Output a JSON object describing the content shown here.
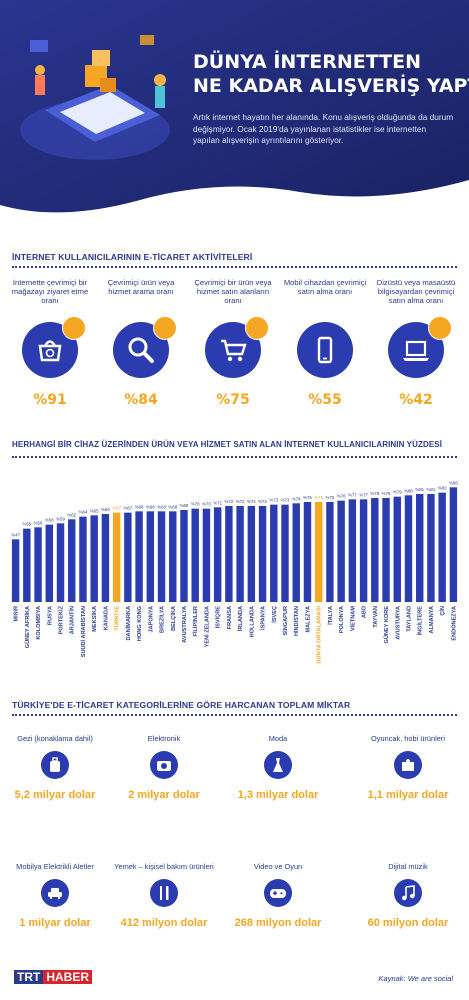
{
  "header": {
    "title_line1": "DÜNYA İNTERNETTEN",
    "title_line2": "NE KADAR ALIŞVERİŞ YAPTI?",
    "intro": "Artık internet hayatın her alanında. Konu alışveriş olduğunda da durum değişmiyor. Ocak 2019'da yayınlanan istatistikler ise internetten yapılan alışverişin ayrıntılarını gösteriyor."
  },
  "activities": {
    "title": "İNTERNET KULLANICILARININ E-TİCARET AKTİVİTELERİ",
    "items": [
      {
        "label": "İnternette çevrimiçi bir mağazayı ziyaret etme oranı",
        "value": "%91",
        "icon": "shopping-basket-icon"
      },
      {
        "label": "Çevrimiçi ürün veya hizmet arama oranı",
        "value": "%84",
        "icon": "magnifier-icon"
      },
      {
        "label": "Çevrimiçi bir ürün veya hizmet satın alanların oranı",
        "value": "%75",
        "icon": "shopping-cart-icon"
      },
      {
        "label": "Mobil cihazdan çevrimiçi satın alma oranı",
        "value": "%55",
        "icon": "smartphone-icon"
      },
      {
        "label": "Dizüstü veya masaüstü bilgisayardan çevrimiçi satın alma oranı",
        "value": "%42",
        "icon": "laptop-icon"
      }
    ]
  },
  "chart_data": {
    "type": "bar",
    "title": "HERHANGİ BİR CİHAZ ÜZERİNDEN ÜRÜN VEYA HİZMET SATIN ALAN İNTERNET KULLANICILARININ YÜZDESİ",
    "categories": [
      "MISIR",
      "GÜNEY AFRİKA",
      "KOLOMBİYA",
      "RUSYA",
      "PORTEKİZ",
      "ARJANTİN",
      "SUUDİ ARABİSTAN",
      "MEKSİKA",
      "KANADA",
      "TÜRKİYE",
      "DANİMARKA",
      "HONG KONG",
      "JAPONYA",
      "BREZİLYA",
      "BELÇİKA",
      "AVUSTRALYA",
      "FİLİPİNLER",
      "YENİ ZELANDA",
      "İSVİÇRE",
      "FRANSA",
      "İRLANDA",
      "HOLLANDA",
      "İSPANYA",
      "İSVEÇ",
      "SİNGAPUR",
      "HİNDİSTAN",
      "MALEZYA",
      "DÜNYA ORTALAMASI",
      "İTALYA",
      "POLONYA",
      "VİETNAM",
      "ABD",
      "TAYVAN",
      "GÜNEY KORE",
      "AVUSTURYA",
      "TAYLAND",
      "İNGİLTERE",
      "ALMANYA",
      "ÇİN",
      "ENDONEZYA"
    ],
    "values": [
      47,
      55,
      56,
      58,
      59,
      62,
      64,
      65,
      66,
      67,
      67,
      68,
      68,
      68,
      68,
      69,
      70,
      70,
      71,
      72,
      72,
      72,
      72,
      73,
      73,
      74,
      75,
      75,
      75,
      76,
      77,
      77,
      78,
      78,
      79,
      80,
      81,
      81,
      82,
      86
    ],
    "value_labels": [
      "%47",
      "%55",
      "%56",
      "%58",
      "%59",
      "%62",
      "%64",
      "%65",
      "%66",
      "%67",
      "%67",
      "%68",
      "%68",
      "%68",
      "%68",
      "%69",
      "%70",
      "%70",
      "%71",
      "%72",
      "%72",
      "%72",
      "%72",
      "%73",
      "%73",
      "%74",
      "%75",
      "%75",
      "%75",
      "%76",
      "%77",
      "%77",
      "%78",
      "%78",
      "%79",
      "%80",
      "%81",
      "%81",
      "%82",
      "%86"
    ],
    "highlight": [
      "TÜRKİYE",
      "DÜNYA ORTALAMASI"
    ],
    "colors": {
      "bar": "#2b3bb0",
      "highlight": "#f5a623"
    },
    "ylim": [
      0,
      90
    ]
  },
  "categories": {
    "title": "TÜRKİYE'DE E-TİCARET KATEGORİLERİNE GÖRE HARCANAN TOPLAM MİKTAR",
    "items": [
      {
        "label": "Gezi (konaklama dahil)",
        "value": "5,2 milyar dolar",
        "icon": "luggage-icon"
      },
      {
        "label": "Elektronik",
        "value": "2 milyar dolar",
        "icon": "camera-icon"
      },
      {
        "label": "Moda",
        "value": "1,3 milyar dolar",
        "icon": "dress-icon"
      },
      {
        "label": "Oyuncak, hobi ürünleri",
        "value": "1,1 milyar dolar",
        "icon": "puzzle-icon"
      },
      {
        "label": "Mobilya Elektrikli Aletler",
        "value": "1 milyar dolar",
        "icon": "armchair-icon"
      },
      {
        "label": "Yemek – kişisel bakım ürünleri",
        "value": "412 milyon dolar",
        "icon": "fork-knife-icon"
      },
      {
        "label": "Video ve Oyun",
        "value": "268 milyon dolar",
        "icon": "gamepad-icon"
      },
      {
        "label": "Dijital müzik",
        "value": "60 milyon dolar",
        "icon": "music-note-icon"
      }
    ]
  },
  "footer": {
    "logo_trt": "TRT",
    "logo_haber": "HABER",
    "source": "Kaynak: We are social"
  },
  "palette": {
    "navy": "#2b3a8f",
    "blue": "#2b3bb0",
    "orange": "#f5a623",
    "hero_dark": "#1c2566"
  }
}
